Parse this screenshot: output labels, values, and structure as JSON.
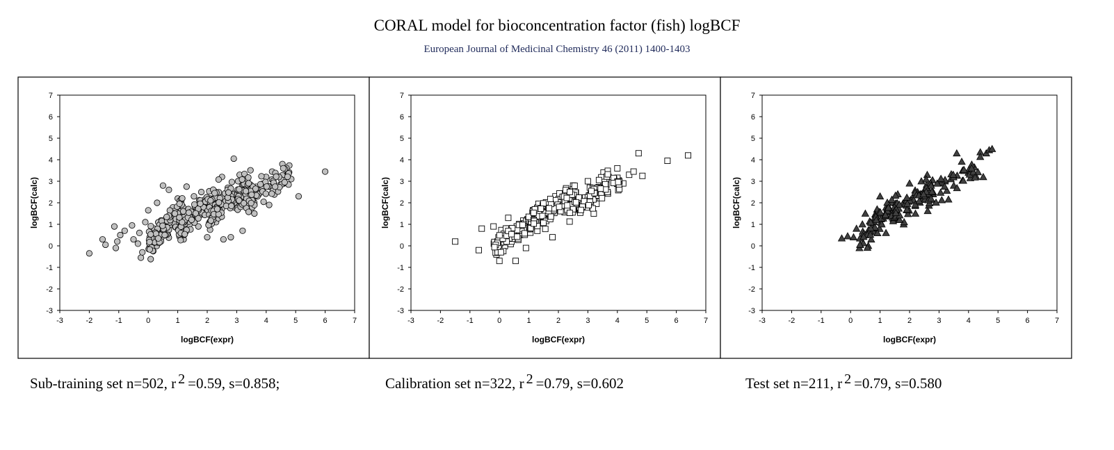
{
  "header": {
    "title": "CORAL model for bioconcentration factor (fish) logBCF",
    "subtitle": "European Journal of Medicinal Chemistry 46 (2011) 1400-1403"
  },
  "captions": [
    {
      "prefix": "Sub-training set n=502, r",
      "sup": "2",
      "suffix": "=0.59, s=0.858;"
    },
    {
      "prefix": "Calibration set n=322, r",
      "sup": "2",
      "suffix": "=0.79, s=0.602"
    },
    {
      "prefix": "Test set n=211, r",
      "sup": "2",
      "suffix": "=0.79, s=0.580"
    }
  ],
  "chart_data": [
    {
      "type": "scatter",
      "xlabel": "logBCF(expr)",
      "ylabel": "logBCF(calc)",
      "xlim": [
        -3,
        7
      ],
      "ylim": [
        -3,
        7
      ],
      "xticks": [
        "-3",
        "-2",
        "-1",
        "0",
        "1",
        "2",
        "3",
        "4",
        "5",
        "6",
        "7"
      ],
      "yticks": [
        "-3",
        "-2",
        "-1",
        "0",
        "1",
        "2",
        "3",
        "4",
        "5",
        "6",
        "7"
      ],
      "grid": false,
      "legend": "none",
      "marker": "circle",
      "marker_fill": "#c0c0c0",
      "marker_stroke": "#000000",
      "points": [
        [
          -2.0,
          -0.35
        ],
        [
          -1.55,
          0.3
        ],
        [
          -1.45,
          0.05
        ],
        [
          -1.15,
          0.9
        ],
        [
          -1.1,
          -0.1
        ],
        [
          -1.05,
          0.2
        ],
        [
          -0.95,
          0.5
        ],
        [
          -0.8,
          0.7
        ],
        [
          -0.55,
          0.95
        ],
        [
          -0.5,
          0.3
        ],
        [
          -0.35,
          0.1
        ],
        [
          -0.3,
          0.6
        ],
        [
          -0.25,
          -0.55
        ],
        [
          -0.2,
          -0.3
        ],
        [
          -0.1,
          1.1
        ],
        [
          0.0,
          1.65
        ],
        [
          0.05,
          0.4
        ],
        [
          0.1,
          -0.05
        ],
        [
          0.2,
          0.8
        ],
        [
          0.3,
          2.0
        ],
        [
          0.45,
          0.4
        ],
        [
          0.5,
          2.8
        ],
        [
          0.7,
          2.6
        ],
        [
          0.9,
          1.5
        ],
        [
          1.0,
          2.2
        ],
        [
          1.2,
          0.3
        ],
        [
          1.3,
          2.75
        ],
        [
          1.55,
          2.3
        ],
        [
          1.7,
          0.9
        ],
        [
          1.8,
          2.5
        ],
        [
          2.0,
          0.4
        ],
        [
          2.1,
          2.2
        ],
        [
          2.3,
          1.1
        ],
        [
          2.5,
          3.2
        ],
        [
          2.55,
          0.3
        ],
        [
          2.7,
          2.7
        ],
        [
          2.8,
          0.4
        ],
        [
          2.9,
          4.05
        ],
        [
          3.0,
          2.3
        ],
        [
          3.1,
          3.3
        ],
        [
          3.2,
          0.7
        ],
        [
          3.4,
          2.0
        ],
        [
          3.6,
          1.5
        ],
        [
          3.8,
          2.7
        ],
        [
          4.0,
          3.2
        ],
        [
          4.1,
          1.9
        ],
        [
          4.2,
          3.45
        ],
        [
          4.35,
          2.6
        ],
        [
          4.55,
          3.8
        ],
        [
          4.6,
          2.9
        ],
        [
          4.7,
          3.3
        ],
        [
          4.85,
          3.1
        ],
        [
          5.1,
          2.3
        ],
        [
          6.0,
          3.45
        ]
      ],
      "dense_clouds": [
        {
          "x": [
            0.0,
            1.2
          ],
          "y": [
            0.0,
            1.8
          ],
          "count": 130,
          "seed": 11
        },
        {
          "x": [
            1.0,
            2.4
          ],
          "y": [
            0.7,
            2.5
          ],
          "count": 120,
          "seed": 23
        },
        {
          "x": [
            2.0,
            3.5
          ],
          "y": [
            1.2,
            3.0
          ],
          "count": 110,
          "seed": 37
        },
        {
          "x": [
            3.0,
            4.8
          ],
          "y": [
            1.8,
            3.4
          ],
          "count": 80,
          "seed": 41
        }
      ]
    },
    {
      "type": "scatter",
      "xlabel": "logBCF(expr)",
      "ylabel": "logBCF(calc)",
      "xlim": [
        -3,
        7
      ],
      "ylim": [
        -3,
        7
      ],
      "xticks": [
        "-3",
        "-2",
        "-1",
        "0",
        "1",
        "2",
        "3",
        "4",
        "5",
        "6",
        "7"
      ],
      "yticks": [
        "-3",
        "-2",
        "-1",
        "0",
        "1",
        "2",
        "3",
        "4",
        "5",
        "6",
        "7"
      ],
      "grid": false,
      "legend": "none",
      "marker": "square",
      "marker_fill": "#ffffff",
      "marker_stroke": "#000000",
      "points": [
        [
          -1.5,
          0.2
        ],
        [
          -0.7,
          -0.2
        ],
        [
          -0.6,
          0.8
        ],
        [
          -0.2,
          0.9
        ],
        [
          -0.1,
          -0.4
        ],
        [
          0.0,
          -0.7
        ],
        [
          0.1,
          0.3
        ],
        [
          0.3,
          1.3
        ],
        [
          0.55,
          -0.7
        ],
        [
          0.7,
          0.5
        ],
        [
          0.9,
          -0.1
        ],
        [
          1.2,
          0.9
        ],
        [
          1.5,
          1.8
        ],
        [
          1.8,
          0.4
        ],
        [
          1.9,
          2.3
        ],
        [
          2.2,
          2.0
        ],
        [
          2.5,
          2.8
        ],
        [
          2.7,
          1.7
        ],
        [
          3.0,
          3.0
        ],
        [
          3.2,
          1.5
        ],
        [
          3.5,
          2.7
        ],
        [
          3.7,
          3.2
        ],
        [
          4.0,
          3.6
        ],
        [
          4.2,
          2.9
        ],
        [
          4.4,
          3.3
        ],
        [
          4.55,
          3.45
        ],
        [
          4.72,
          4.3
        ],
        [
          4.85,
          3.25
        ],
        [
          5.7,
          3.95
        ],
        [
          6.4,
          4.2
        ]
      ],
      "dense_clouds": [
        {
          "x": [
            -0.2,
            1.3
          ],
          "y": [
            0.0,
            1.4
          ],
          "count": 90,
          "seed": 53
        },
        {
          "x": [
            1.0,
            2.6
          ],
          "y": [
            0.9,
            2.5
          ],
          "count": 110,
          "seed": 61
        },
        {
          "x": [
            2.3,
            4.1
          ],
          "y": [
            1.6,
            3.2
          ],
          "count": 90,
          "seed": 71
        }
      ]
    },
    {
      "type": "scatter",
      "xlabel": "logBCF(expr)",
      "ylabel": "logBCF(calc)",
      "xlim": [
        -3,
        7
      ],
      "ylim": [
        -3,
        7
      ],
      "xticks": [
        "-3",
        "-2",
        "-1",
        "0",
        "1",
        "2",
        "3",
        "4",
        "5",
        "6",
        "7"
      ],
      "yticks": [
        "-3",
        "-2",
        "-1",
        "0",
        "1",
        "2",
        "3",
        "4",
        "5",
        "6",
        "7"
      ],
      "grid": false,
      "legend": "none",
      "marker": "triangle",
      "marker_fill": "#404040",
      "marker_stroke": "#000000",
      "points": [
        [
          -0.3,
          0.35
        ],
        [
          -0.1,
          0.45
        ],
        [
          0.1,
          0.4
        ],
        [
          0.2,
          0.8
        ],
        [
          0.3,
          -0.1
        ],
        [
          0.4,
          1.0
        ],
        [
          0.5,
          1.5
        ],
        [
          0.6,
          0.0
        ],
        [
          0.7,
          0.3
        ],
        [
          0.9,
          1.7
        ],
        [
          1.0,
          2.3
        ],
        [
          1.2,
          0.6
        ],
        [
          1.4,
          2.0
        ],
        [
          1.6,
          2.4
        ],
        [
          1.8,
          1.0
        ],
        [
          2.0,
          2.9
        ],
        [
          2.2,
          1.5
        ],
        [
          2.4,
          3.0
        ],
        [
          2.6,
          3.3
        ],
        [
          2.8,
          2.4
        ],
        [
          3.0,
          2.9
        ],
        [
          3.2,
          3.0
        ],
        [
          3.4,
          3.1
        ],
        [
          3.5,
          2.8
        ],
        [
          3.6,
          4.3
        ],
        [
          3.8,
          3.5
        ],
        [
          4.0,
          3.4
        ],
        [
          4.2,
          3.65
        ],
        [
          4.4,
          4.35
        ],
        [
          4.5,
          3.2
        ],
        [
          4.6,
          4.3
        ],
        [
          4.7,
          4.45
        ],
        [
          4.8,
          4.5
        ]
      ],
      "dense_clouds": [
        {
          "x": [
            0.3,
            1.6
          ],
          "y": [
            0.3,
            2.0
          ],
          "count": 60,
          "seed": 83
        },
        {
          "x": [
            1.4,
            2.8
          ],
          "y": [
            1.2,
            2.9
          ],
          "count": 60,
          "seed": 89
        },
        {
          "x": [
            2.6,
            4.4
          ],
          "y": [
            2.2,
            3.8
          ],
          "count": 40,
          "seed": 97
        }
      ]
    }
  ]
}
